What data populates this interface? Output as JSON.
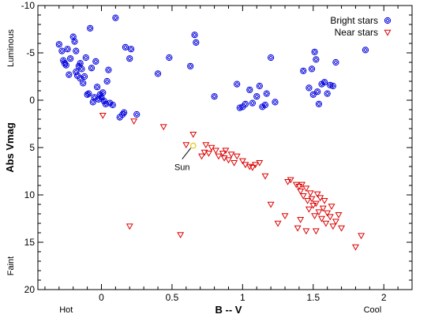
{
  "chart_data": {
    "type": "scatter",
    "title": "",
    "xlabel": "B -- V",
    "ylabel": "Abs Vmag",
    "xlim": [
      -0.45,
      2.2
    ],
    "ylim": [
      20,
      -10
    ],
    "y_inverted": true,
    "grid": false,
    "legend_position": "top-right",
    "x_ticks": [
      "0",
      "0.5",
      "1",
      "1.5",
      "2"
    ],
    "y_ticks": [
      "-10",
      "-5",
      "0",
      "5",
      "10",
      "15",
      "20"
    ],
    "x_side_labels": {
      "left": "Hot",
      "right": "Cool"
    },
    "y_side_labels": {
      "top": "Luminous",
      "bottom": "Faint"
    },
    "series": [
      {
        "name": "Bright stars",
        "color": "#0000dd",
        "marker": "diamond-in-circle",
        "points": [
          [
            -0.3,
            -5.9
          ],
          [
            -0.28,
            -5.2
          ],
          [
            -0.27,
            -4.2
          ],
          [
            -0.26,
            -3.9
          ],
          [
            -0.25,
            -3.7
          ],
          [
            -0.24,
            -5.4
          ],
          [
            -0.23,
            -2.7
          ],
          [
            -0.22,
            -4.4
          ],
          [
            -0.2,
            -6.7
          ],
          [
            -0.19,
            -6.2
          ],
          [
            -0.18,
            -5.2
          ],
          [
            -0.18,
            -3.0
          ],
          [
            -0.17,
            -2.6
          ],
          [
            -0.16,
            -3.6
          ],
          [
            -0.15,
            -3.9
          ],
          [
            -0.15,
            -2.3
          ],
          [
            -0.14,
            -3.3
          ],
          [
            -0.13,
            -1.8
          ],
          [
            -0.12,
            -2.5
          ],
          [
            -0.11,
            -4.5
          ],
          [
            -0.1,
            -0.6
          ],
          [
            -0.09,
            -0.7
          ],
          [
            -0.08,
            -7.6
          ],
          [
            -0.07,
            -3.4
          ],
          [
            -0.06,
            0.2
          ],
          [
            -0.05,
            -0.3
          ],
          [
            -0.04,
            -4.1
          ],
          [
            -0.03,
            -1.4
          ],
          [
            -0.02,
            -0.1
          ],
          [
            -0.01,
            -0.6
          ],
          [
            0.0,
            -0.3
          ],
          [
            0.01,
            -0.8
          ],
          [
            0.02,
            0.1
          ],
          [
            0.03,
            0.4
          ],
          [
            0.04,
            -2.0
          ],
          [
            0.05,
            -3.2
          ],
          [
            0.06,
            0.3
          ],
          [
            0.08,
            0.5
          ],
          [
            0.1,
            -8.7
          ],
          [
            0.13,
            1.8
          ],
          [
            0.15,
            1.5
          ],
          [
            0.16,
            1.3
          ],
          [
            0.17,
            -5.6
          ],
          [
            0.2,
            -4.4
          ],
          [
            0.21,
            -5.4
          ],
          [
            0.25,
            1.5
          ],
          [
            0.4,
            -2.8
          ],
          [
            0.48,
            -4.5
          ],
          [
            0.63,
            -3.6
          ],
          [
            0.66,
            -6.9
          ],
          [
            0.67,
            -6.1
          ],
          [
            0.8,
            -0.4
          ],
          [
            0.96,
            -1.7
          ],
          [
            0.98,
            0.8
          ],
          [
            1.0,
            0.7
          ],
          [
            1.02,
            0.4
          ],
          [
            1.05,
            -1.1
          ],
          [
            1.07,
            0.3
          ],
          [
            1.1,
            -0.4
          ],
          [
            1.12,
            -1.5
          ],
          [
            1.14,
            0.7
          ],
          [
            1.16,
            0.5
          ],
          [
            1.17,
            -0.7
          ],
          [
            1.2,
            -4.5
          ],
          [
            1.23,
            0.2
          ],
          [
            1.43,
            -3.1
          ],
          [
            1.47,
            -1.3
          ],
          [
            1.49,
            -3.3
          ],
          [
            1.5,
            -0.6
          ],
          [
            1.51,
            -5.1
          ],
          [
            1.52,
            -4.3
          ],
          [
            1.53,
            -0.9
          ],
          [
            1.54,
            0.4
          ],
          [
            1.56,
            -1.7
          ],
          [
            1.58,
            -1.9
          ],
          [
            1.6,
            -0.7
          ],
          [
            1.62,
            -1.6
          ],
          [
            1.64,
            -1.5
          ],
          [
            1.66,
            -4.0
          ],
          [
            1.87,
            -5.3
          ]
        ]
      },
      {
        "name": "Near stars",
        "color": "#dd0000",
        "marker": "triangle-down",
        "points": [
          [
            0.01,
            1.6
          ],
          [
            0.23,
            2.2
          ],
          [
            0.44,
            2.8
          ],
          [
            0.6,
            4.7
          ],
          [
            0.65,
            3.6
          ],
          [
            0.71,
            5.9
          ],
          [
            0.73,
            5.5
          ],
          [
            0.74,
            4.7
          ],
          [
            0.76,
            5.6
          ],
          [
            0.78,
            5.0
          ],
          [
            0.81,
            5.3
          ],
          [
            0.83,
            5.9
          ],
          [
            0.86,
            5.6
          ],
          [
            0.87,
            6.1
          ],
          [
            0.88,
            5.3
          ],
          [
            0.9,
            6.3
          ],
          [
            0.92,
            5.7
          ],
          [
            0.94,
            6.6
          ],
          [
            0.96,
            5.9
          ],
          [
            1.0,
            6.4
          ],
          [
            1.02,
            6.8
          ],
          [
            1.05,
            7.0
          ],
          [
            1.07,
            7.1
          ],
          [
            1.09,
            6.8
          ],
          [
            1.12,
            6.6
          ],
          [
            1.16,
            8.0
          ],
          [
            1.2,
            11.0
          ],
          [
            1.25,
            13.0
          ],
          [
            1.32,
            8.6
          ],
          [
            1.34,
            8.4
          ],
          [
            1.38,
            8.9
          ],
          [
            1.4,
            9.1
          ],
          [
            1.41,
            9.6
          ],
          [
            1.42,
            8.9
          ],
          [
            1.43,
            10.1
          ],
          [
            1.45,
            9.3
          ],
          [
            1.46,
            10.6
          ],
          [
            1.47,
            11.5
          ],
          [
            1.48,
            9.8
          ],
          [
            1.49,
            10.4
          ],
          [
            1.5,
            11.1
          ],
          [
            1.51,
            12.2
          ],
          [
            1.52,
            10.9
          ],
          [
            1.53,
            9.9
          ],
          [
            1.54,
            11.8
          ],
          [
            1.55,
            10.3
          ],
          [
            1.56,
            12.5
          ],
          [
            1.57,
            11.4
          ],
          [
            1.58,
            10.6
          ],
          [
            1.59,
            13.0
          ],
          [
            1.6,
            11.9
          ],
          [
            1.62,
            12.3
          ],
          [
            1.63,
            11.2
          ],
          [
            1.64,
            13.3
          ],
          [
            1.66,
            12.8
          ],
          [
            1.68,
            12.1
          ],
          [
            1.7,
            13.5
          ],
          [
            1.45,
            13.8
          ],
          [
            1.3,
            12.2
          ],
          [
            1.39,
            13.5
          ],
          [
            1.41,
            12.6
          ],
          [
            0.2,
            13.3
          ],
          [
            0.56,
            14.2
          ],
          [
            1.8,
            15.5
          ],
          [
            1.84,
            14.3
          ],
          [
            1.52,
            13.8
          ]
        ]
      }
    ],
    "annotations": [
      {
        "text": "Sun",
        "x": 0.65,
        "y": 4.8,
        "color": "#e6c619"
      }
    ]
  }
}
